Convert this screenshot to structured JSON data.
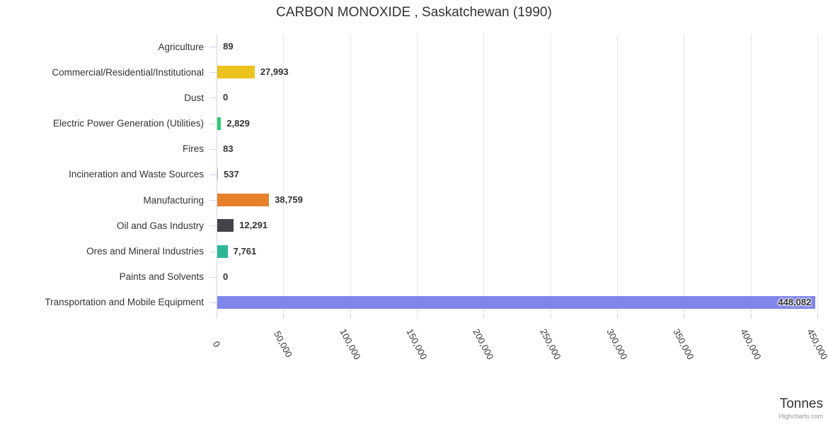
{
  "title": "CARBON MONOXIDE , Saskatchewan (1990)",
  "chart_data": {
    "type": "bar",
    "orientation": "horizontal",
    "title": "CARBON MONOXIDE , Saskatchewan (1990)",
    "categories": [
      "Agriculture",
      "Commercial/Residential/Institutional",
      "Dust",
      "Electric Power Generation (Utilities)",
      "Fires",
      "Incineration and Waste Sources",
      "Manufacturing",
      "Oil and Gas Industry",
      "Ores and Mineral Industries",
      "Paints and Solvents",
      "Transportation and Mobile Equipment"
    ],
    "values": [
      89,
      27993,
      0,
      2829,
      83,
      537,
      38759,
      12291,
      7761,
      0,
      448082
    ],
    "value_labels": [
      "89",
      "27,993",
      "0",
      "2,829",
      "83",
      "537",
      "38,759",
      "12,291",
      "7,761",
      "0",
      "448,082"
    ],
    "bar_colors": [
      "#b8b8b8",
      "#ecc21e",
      "#b8b8b8",
      "#2ecc71",
      "#b8b8b8",
      "#b8b8b8",
      "#e6802b",
      "#434348",
      "#2cb897",
      "#b8b8b8",
      "#8085e9"
    ],
    "xlabel": "Tonnes",
    "xlim": [
      0,
      450000
    ],
    "x_tick_values": [
      0,
      50000,
      100000,
      150000,
      200000,
      250000,
      300000,
      350000,
      400000,
      450000
    ],
    "x_tick_labels": [
      "0",
      "50,000",
      "100,000",
      "150,000",
      "200,000",
      "250,000",
      "300,000",
      "350,000",
      "400,000",
      "450,000"
    ],
    "grid": true,
    "legend": false
  },
  "footer": {
    "axis_title": "Tonnes",
    "credit": "Highcharts.com"
  },
  "style": {
    "grid_color": "#e6e6e6",
    "axis_color": "#ccd6eb",
    "text_color": "#333333",
    "credit_color": "#999999"
  }
}
